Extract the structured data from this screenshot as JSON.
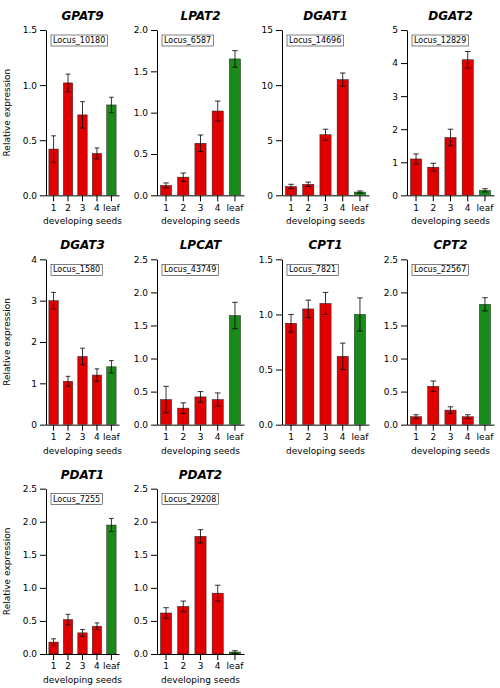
{
  "chart_data": [
    {
      "type": "bar",
      "title": "GPAT9",
      "annotations": [
        "Locus_10180"
      ],
      "x_label": "developing seeds",
      "y_label": "Relative expression",
      "categories": [
        "1",
        "2",
        "3",
        "4",
        "leaf"
      ],
      "values": [
        0.42,
        1.02,
        0.73,
        0.38,
        0.82
      ],
      "errors": [
        0.12,
        0.08,
        0.12,
        0.05,
        0.07
      ],
      "colors": [
        "#e00000",
        "#e00000",
        "#e00000",
        "#e00000",
        "#1a8a1a"
      ],
      "ylim": [
        0,
        1.5
      ],
      "yticks": [
        {
          "value": 0,
          "label": "0.0"
        },
        0.5,
        {
          "value": 1,
          "label": "1.0"
        },
        1.5
      ]
    },
    {
      "type": "bar",
      "title": "LPAT2",
      "annotations": [
        "Locus_6587"
      ],
      "x_label": "developing seeds",
      "categories": [
        "1",
        "2",
        "3",
        "4",
        "leaf"
      ],
      "values": [
        0.12,
        0.22,
        0.63,
        1.02,
        1.65
      ],
      "errors": [
        0.03,
        0.05,
        0.1,
        0.12,
        0.1
      ],
      "colors": [
        "#e00000",
        "#e00000",
        "#e00000",
        "#e00000",
        "#1a8a1a"
      ],
      "ylim": [
        0,
        2.0
      ],
      "yticks": [
        {
          "value": 0,
          "label": "0.0"
        },
        0.5,
        {
          "value": 1,
          "label": "1.0"
        },
        1.5,
        {
          "value": 2,
          "label": "2.0"
        }
      ]
    },
    {
      "type": "bar",
      "title": "DGAT1",
      "annotations": [
        "Locus_14696"
      ],
      "x_label": "developing seeds",
      "categories": [
        "1",
        "2",
        "3",
        "4",
        "leaf"
      ],
      "values": [
        0.8,
        1.0,
        5.5,
        10.5,
        0.3
      ],
      "errors": [
        0.2,
        0.2,
        0.5,
        0.6,
        0.1
      ],
      "colors": [
        "#e00000",
        "#e00000",
        "#e00000",
        "#e00000",
        "#1a8a1a"
      ],
      "ylim": [
        0,
        15
      ],
      "yticks": [
        0,
        5,
        10,
        15
      ]
    },
    {
      "type": "bar",
      "title": "DGAT2",
      "annotations": [
        "Locus_12829"
      ],
      "x_label": "developing seeds",
      "categories": [
        "1",
        "2",
        "3",
        "4",
        "leaf"
      ],
      "values": [
        1.1,
        0.85,
        1.75,
        4.1,
        0.15
      ],
      "errors": [
        0.15,
        0.12,
        0.25,
        0.25,
        0.05
      ],
      "colors": [
        "#e00000",
        "#e00000",
        "#e00000",
        "#e00000",
        "#1a8a1a"
      ],
      "ylim": [
        0,
        5
      ],
      "yticks": [
        0,
        1,
        2,
        3,
        4,
        5
      ]
    },
    {
      "type": "bar",
      "title": "DGAT3",
      "annotations": [
        "Locus_1580"
      ],
      "x_label": "developing seeds",
      "y_label": "Relative expression",
      "categories": [
        "1",
        "2",
        "3",
        "4",
        "leaf"
      ],
      "values": [
        3.0,
        1.05,
        1.65,
        1.2,
        1.4
      ],
      "errors": [
        0.2,
        0.12,
        0.2,
        0.15,
        0.15
      ],
      "colors": [
        "#e00000",
        "#e00000",
        "#e00000",
        "#e00000",
        "#1a8a1a"
      ],
      "ylim": [
        0,
        4
      ],
      "yticks": [
        0,
        1,
        2,
        3,
        4
      ]
    },
    {
      "type": "bar",
      "title": "LPCAT",
      "annotations": [
        "Locus_43749"
      ],
      "x_label": "developing seeds",
      "categories": [
        "1",
        "2",
        "3",
        "4",
        "leaf"
      ],
      "values": [
        0.38,
        0.25,
        0.42,
        0.38,
        1.65
      ],
      "errors": [
        0.2,
        0.08,
        0.08,
        0.1,
        0.2
      ],
      "colors": [
        "#e00000",
        "#e00000",
        "#e00000",
        "#e00000",
        "#1a8a1a"
      ],
      "ylim": [
        0,
        2.5
      ],
      "yticks": [
        {
          "value": 0,
          "label": "0.0"
        },
        0.5,
        {
          "value": 1,
          "label": "1.0"
        },
        1.5,
        {
          "value": 2,
          "label": "2.0"
        },
        2.5
      ]
    },
    {
      "type": "bar",
      "title": "CPT1",
      "annotations": [
        "Locus_7821"
      ],
      "x_label": "developing seeds",
      "categories": [
        "1",
        "2",
        "3",
        "4",
        "leaf"
      ],
      "values": [
        0.92,
        1.05,
        1.1,
        0.62,
        1.0
      ],
      "errors": [
        0.08,
        0.08,
        0.1,
        0.12,
        0.15
      ],
      "colors": [
        "#e00000",
        "#e00000",
        "#e00000",
        "#e00000",
        "#1a8a1a"
      ],
      "ylim": [
        0,
        1.5
      ],
      "yticks": [
        {
          "value": 0,
          "label": "0.0"
        },
        0.5,
        {
          "value": 1,
          "label": "1.0"
        },
        1.5
      ]
    },
    {
      "type": "bar",
      "title": "CPT2",
      "annotations": [
        "Locus_22567"
      ],
      "x_label": "developing seeds",
      "categories": [
        "1",
        "2",
        "3",
        "4",
        "leaf"
      ],
      "values": [
        0.12,
        0.58,
        0.22,
        0.12,
        1.82
      ],
      "errors": [
        0.03,
        0.08,
        0.05,
        0.03,
        0.1
      ],
      "colors": [
        "#e00000",
        "#e00000",
        "#e00000",
        "#e00000",
        "#1a8a1a"
      ],
      "ylim": [
        0,
        2.5
      ],
      "yticks": [
        {
          "value": 0,
          "label": "0.0"
        },
        0.5,
        {
          "value": 1,
          "label": "1.0"
        },
        1.5,
        {
          "value": 2,
          "label": "2.0"
        },
        2.5
      ]
    },
    {
      "type": "bar",
      "title": "PDAT1",
      "annotations": [
        "Locus_7255"
      ],
      "x_label": "developing seeds",
      "y_label": "Relative expression",
      "categories": [
        "1",
        "2",
        "3",
        "4",
        "leaf"
      ],
      "values": [
        0.18,
        0.52,
        0.32,
        0.42,
        1.95
      ],
      "errors": [
        0.05,
        0.08,
        0.05,
        0.05,
        0.1
      ],
      "colors": [
        "#e00000",
        "#e00000",
        "#e00000",
        "#e00000",
        "#1a8a1a"
      ],
      "ylim": [
        0,
        2.5
      ],
      "yticks": [
        {
          "value": 0,
          "label": "0.0"
        },
        0.5,
        {
          "value": 1,
          "label": "1.0"
        },
        1.5,
        {
          "value": 2,
          "label": "2.0"
        },
        2.5
      ]
    },
    {
      "type": "bar",
      "title": "PDAT2",
      "annotations": [
        "Locus_29208"
      ],
      "x_label": "developing seeds",
      "categories": [
        "1",
        "2",
        "3",
        "4",
        "leaf"
      ],
      "values": [
        0.62,
        0.72,
        1.78,
        0.92,
        0.03
      ],
      "errors": [
        0.08,
        0.08,
        0.1,
        0.12,
        0.02
      ],
      "colors": [
        "#e00000",
        "#e00000",
        "#e00000",
        "#e00000",
        "#1a8a1a"
      ],
      "ylim": [
        0,
        2.5
      ],
      "yticks": [
        {
          "value": 0,
          "label": "0.0"
        },
        0.5,
        {
          "value": 1,
          "label": "1.0"
        },
        1.5,
        {
          "value": 2,
          "label": "2.0"
        },
        2.5
      ]
    }
  ]
}
